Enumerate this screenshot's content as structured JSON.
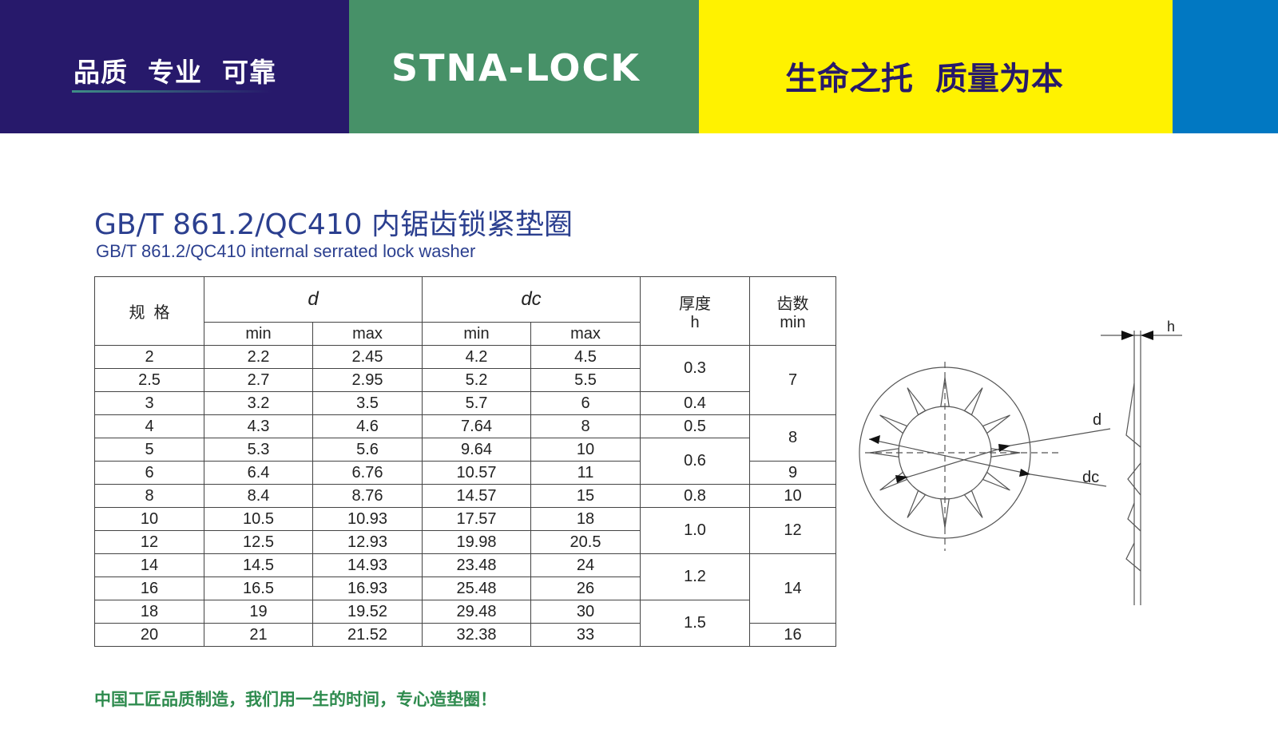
{
  "header": {
    "slogan_left": "品质  专业  可靠",
    "logo": "STNA-LOCK",
    "slogan_right": "生命之托  质量为本",
    "colors": [
      "#27196b",
      "#479168",
      "#fff200",
      "#0178c2"
    ]
  },
  "title": {
    "cn": "GB/T 861.2/QC410 内锯齿锁紧垫圈",
    "en": "GB/T 861.2/QC410 internal serrated lock washer"
  },
  "table": {
    "headers": {
      "spec": "规  格",
      "d": "d",
      "dc": "dc",
      "min": "min",
      "max": "max",
      "h_line1": "厚度",
      "h_line2": "h",
      "teeth_line1": "齿数",
      "teeth_line2": "min"
    },
    "rows": [
      [
        "2",
        "2.2",
        "2.45",
        "4.2",
        "4.5"
      ],
      [
        "2.5",
        "2.7",
        "2.95",
        "5.2",
        "5.5"
      ],
      [
        "3",
        "3.2",
        "3.5",
        "5.7",
        "6"
      ],
      [
        "4",
        "4.3",
        "4.6",
        "7.64",
        "8"
      ],
      [
        "5",
        "5.3",
        "5.6",
        "9.64",
        "10"
      ],
      [
        "6",
        "6.4",
        "6.76",
        "10.57",
        "11"
      ],
      [
        "8",
        "8.4",
        "8.76",
        "14.57",
        "15"
      ],
      [
        "10",
        "10.5",
        "10.93",
        "17.57",
        "18"
      ],
      [
        "12",
        "12.5",
        "12.93",
        "19.98",
        "20.5"
      ],
      [
        "14",
        "14.5",
        "14.93",
        "23.48",
        "24"
      ],
      [
        "16",
        "16.5",
        "16.93",
        "25.48",
        "26"
      ],
      [
        "18",
        "19",
        "19.52",
        "29.48",
        "30"
      ],
      [
        "20",
        "21",
        "21.52",
        "32.38",
        "33"
      ]
    ],
    "thickness": [
      {
        "value": "0.3",
        "span": 2
      },
      {
        "value": "0.4",
        "span": 1
      },
      {
        "value": "0.5",
        "span": 1
      },
      {
        "value": "0.6",
        "span": 2
      },
      {
        "value": "0.8",
        "span": 1
      },
      {
        "value": "1.0",
        "span": 2
      },
      {
        "value": "1.2",
        "span": 2
      },
      {
        "value": "1.5",
        "span": 2
      }
    ],
    "teeth": [
      {
        "value": "7",
        "span": 3
      },
      {
        "value": "8",
        "span": 2
      },
      {
        "value": "9",
        "span": 1
      },
      {
        "value": "10",
        "span": 1
      },
      {
        "value": "12",
        "span": 2
      },
      {
        "value": "14",
        "span": 3
      },
      {
        "value": "16",
        "span": 1
      }
    ]
  },
  "diagram": {
    "label_d": "d",
    "label_dc": "dc",
    "label_h": "h"
  },
  "footer": "中国工匠品质制造，我们用一生的时间，专心造垫圈！"
}
